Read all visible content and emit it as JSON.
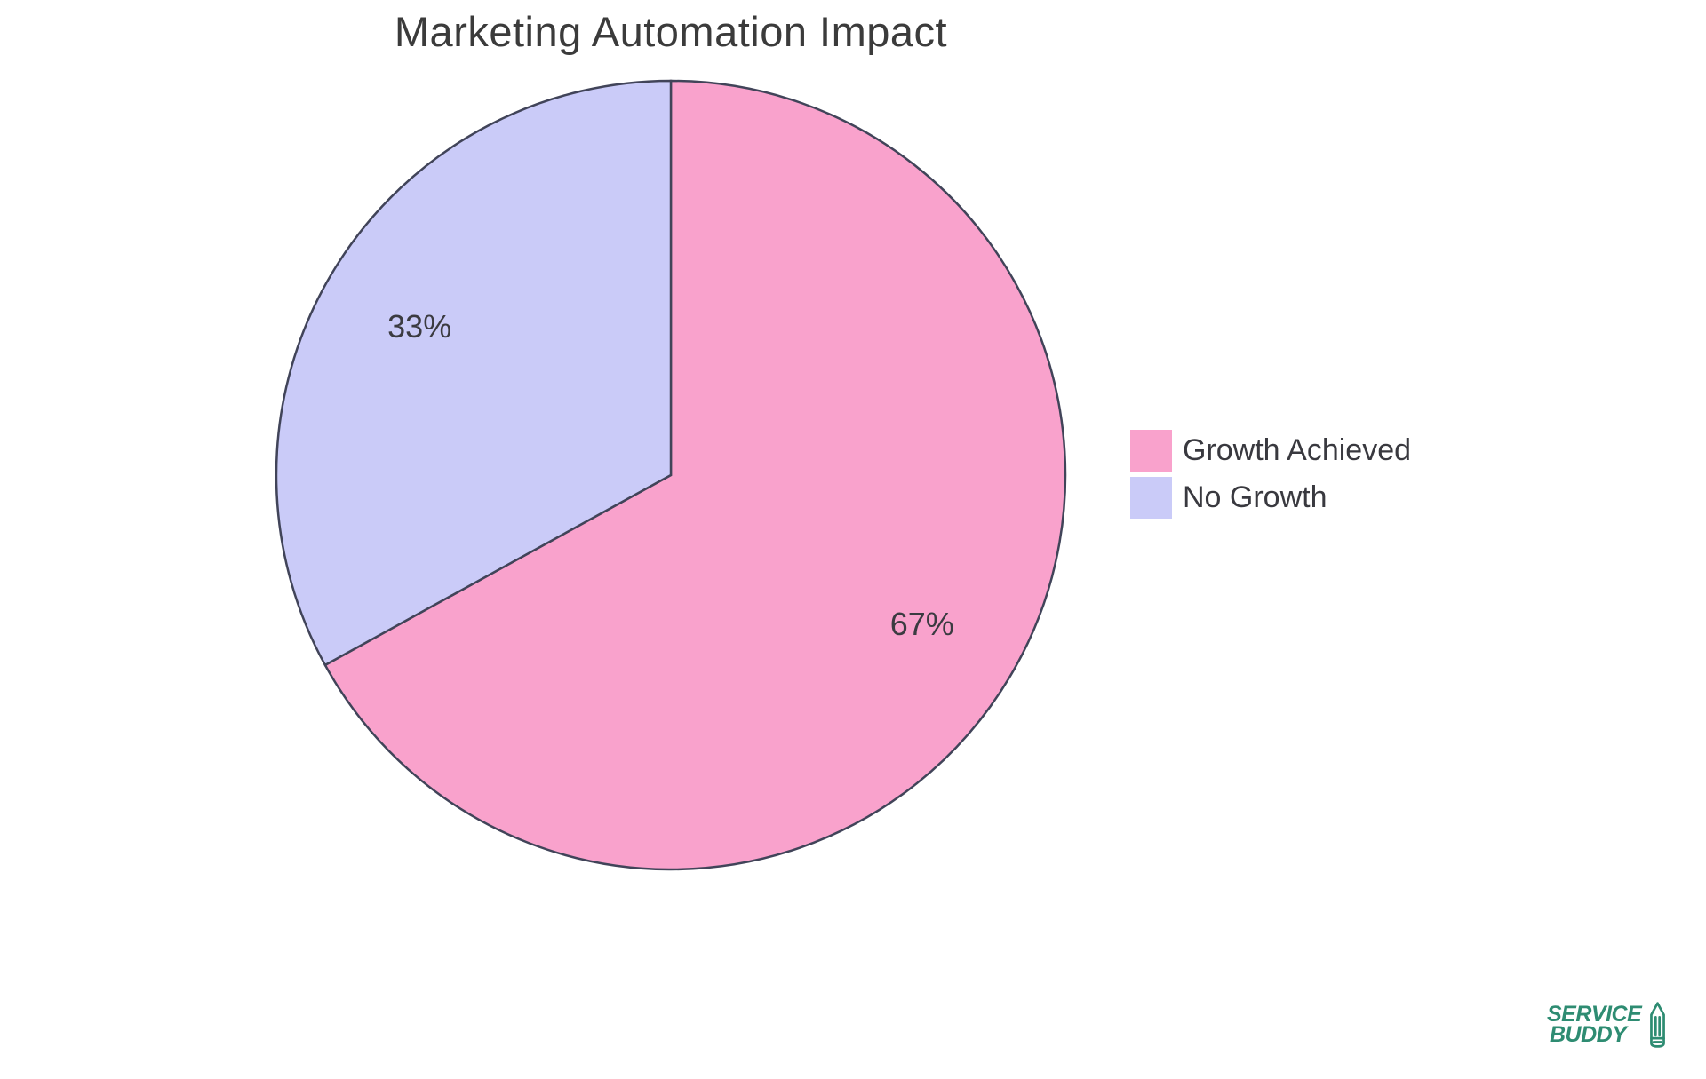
{
  "chart_data": {
    "type": "pie",
    "title": "Marketing Automation Impact",
    "labels": [
      "Growth Achieved",
      "No Growth"
    ],
    "values": [
      67,
      33
    ],
    "value_labels": [
      "67%",
      "33%"
    ],
    "colors": [
      "#F9A2CC",
      "#CACBF8"
    ],
    "stroke_color": "#414459",
    "slice_label_color": "#3B3B41",
    "start_angle": "top",
    "direction": "clockwise",
    "legend_position": "right",
    "legend_entries": [
      {
        "label": "Growth Achieved",
        "color": "#F9A2CC"
      },
      {
        "label": "No Growth",
        "color": "#CACBF8"
      }
    ]
  },
  "logo": {
    "line1": "SERVICE",
    "line2": "BUDDY",
    "color": "#2E8C72",
    "icon": "pencil-icon"
  }
}
